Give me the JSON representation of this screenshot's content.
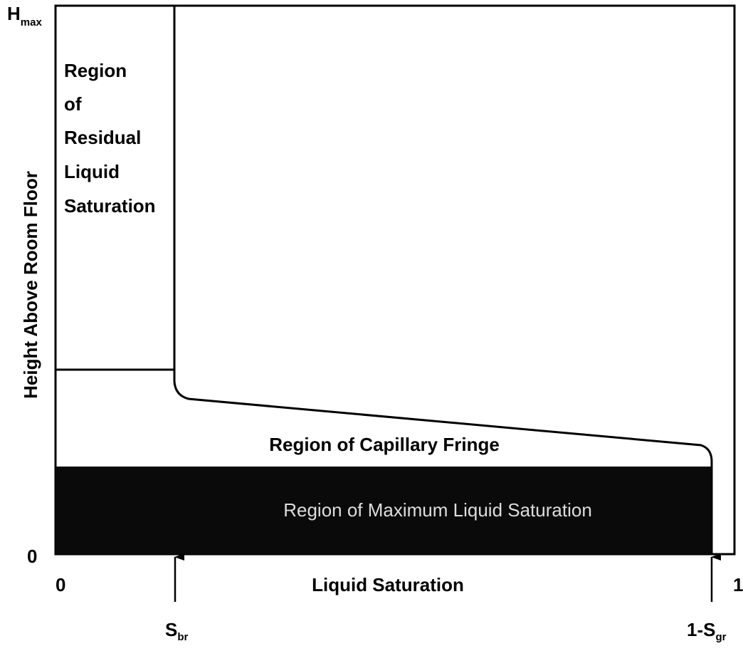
{
  "axes": {
    "y_label": "Height Above Room Floor",
    "x_label": "Liquid Saturation",
    "y_top": {
      "main": "H",
      "sub": "max"
    },
    "y_bottom": "0",
    "x_left": "0",
    "x_right": "1"
  },
  "markers": [
    {
      "main": "S",
      "sub": "br"
    },
    {
      "main": "1-S",
      "sub": "gr"
    }
  ],
  "regions": {
    "residual": [
      "Region",
      "of",
      "Residual",
      "Liquid",
      "Saturation"
    ],
    "fringe": "Region of Capillary Fringe",
    "maximum": "Region of Maximum Liquid Saturation"
  }
}
